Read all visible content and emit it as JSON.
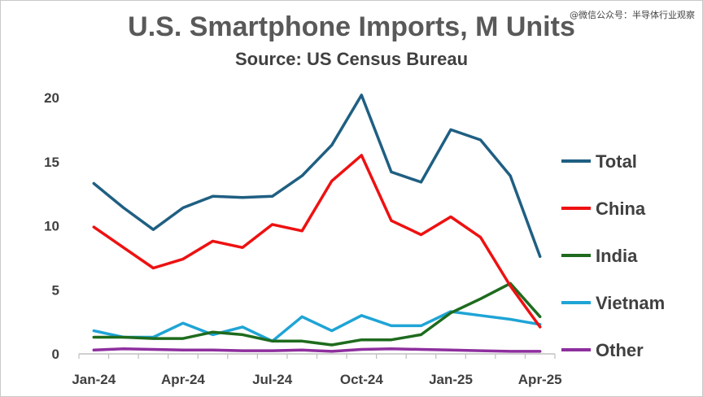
{
  "watermark": "@微信公众号：半导体行业观察",
  "chart_data": {
    "type": "line",
    "title": "U.S. Smartphone Imports, M Units",
    "subtitle": "Source: US Census Bureau",
    "xlabel": "",
    "ylabel": "",
    "x": [
      "Jan-24",
      "Feb-24",
      "Mar-24",
      "Apr-24",
      "May-24",
      "Jun-24",
      "Jul-24",
      "Aug-24",
      "Sep-24",
      "Oct-24",
      "Nov-24",
      "Dec-24",
      "Jan-25",
      "Feb-25",
      "Mar-25",
      "Apr-25"
    ],
    "x_tick_labels": [
      "Jan-24",
      "Apr-24",
      "Jul-24",
      "Oct-24",
      "Jan-25",
      "Apr-25"
    ],
    "x_tick_indices": [
      0,
      3,
      6,
      9,
      12,
      15
    ],
    "ylim": [
      0,
      20
    ],
    "y_ticks": [
      0,
      5,
      10,
      15,
      20
    ],
    "grid": false,
    "legend_position": "right",
    "series": [
      {
        "name": "Total",
        "color": "#1f5f82",
        "values": [
          13.3,
          11.4,
          9.7,
          11.4,
          12.3,
          12.2,
          12.3,
          13.9,
          16.3,
          20.2,
          14.2,
          13.4,
          17.5,
          16.7,
          13.9,
          7.6
        ]
      },
      {
        "name": "China",
        "color": "#ee1111",
        "values": [
          9.9,
          8.3,
          6.7,
          7.4,
          8.8,
          8.3,
          10.1,
          9.6,
          13.5,
          15.5,
          10.4,
          9.3,
          10.7,
          9.1,
          5.3,
          2.1
        ]
      },
      {
        "name": "India",
        "color": "#1e6b1e",
        "values": [
          1.3,
          1.3,
          1.2,
          1.2,
          1.7,
          1.5,
          1.0,
          1.0,
          0.7,
          1.1,
          1.1,
          1.5,
          3.2,
          4.3,
          5.5,
          2.9
        ]
      },
      {
        "name": "Vietnam",
        "color": "#1fa4d6",
        "values": [
          1.8,
          1.3,
          1.3,
          2.4,
          1.5,
          2.1,
          1.0,
          2.9,
          1.8,
          3.0,
          2.2,
          2.2,
          3.3,
          3.0,
          2.7,
          2.3
        ]
      },
      {
        "name": "Other",
        "color": "#8e2f9e",
        "values": [
          0.3,
          0.4,
          0.35,
          0.3,
          0.3,
          0.25,
          0.25,
          0.3,
          0.2,
          0.35,
          0.4,
          0.35,
          0.3,
          0.25,
          0.2,
          0.2
        ]
      }
    ]
  }
}
